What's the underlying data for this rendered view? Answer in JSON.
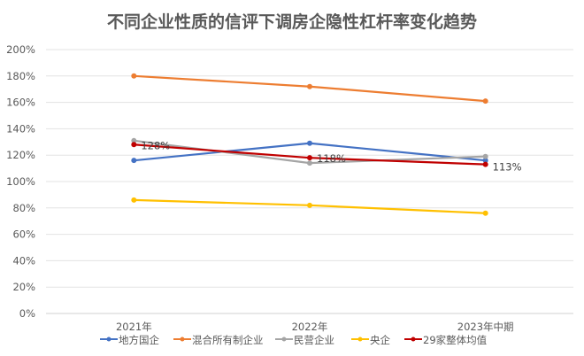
{
  "chart_data": {
    "type": "line",
    "title": "不同企业性质的信评下调房企隐性杠杆率变化趋势",
    "categories": [
      "2021年",
      "2022年",
      "2023年中期"
    ],
    "ylim": [
      0,
      200
    ],
    "yticks": [
      "0%",
      "20%",
      "40%",
      "60%",
      "80%",
      "100%",
      "120%",
      "140%",
      "160%",
      "180%",
      "200%"
    ],
    "grid": true,
    "legend_position": "bottom",
    "series": [
      {
        "name": "地方国企",
        "color": "#4472C4",
        "values": [
          116,
          129,
          116
        ]
      },
      {
        "name": "混合所有制企业",
        "color": "#ED7D31",
        "values": [
          180,
          172,
          161
        ]
      },
      {
        "name": "民营企业",
        "color": "#A5A5A5",
        "values": [
          131,
          114,
          119
        ]
      },
      {
        "name": "央企",
        "color": "#FFC000",
        "values": [
          86,
          82,
          76
        ]
      },
      {
        "name": "29家整体均值",
        "color": "#C00000",
        "values": [
          128,
          118,
          113
        ],
        "labels": [
          "128%",
          "118%",
          "113%"
        ]
      }
    ]
  }
}
